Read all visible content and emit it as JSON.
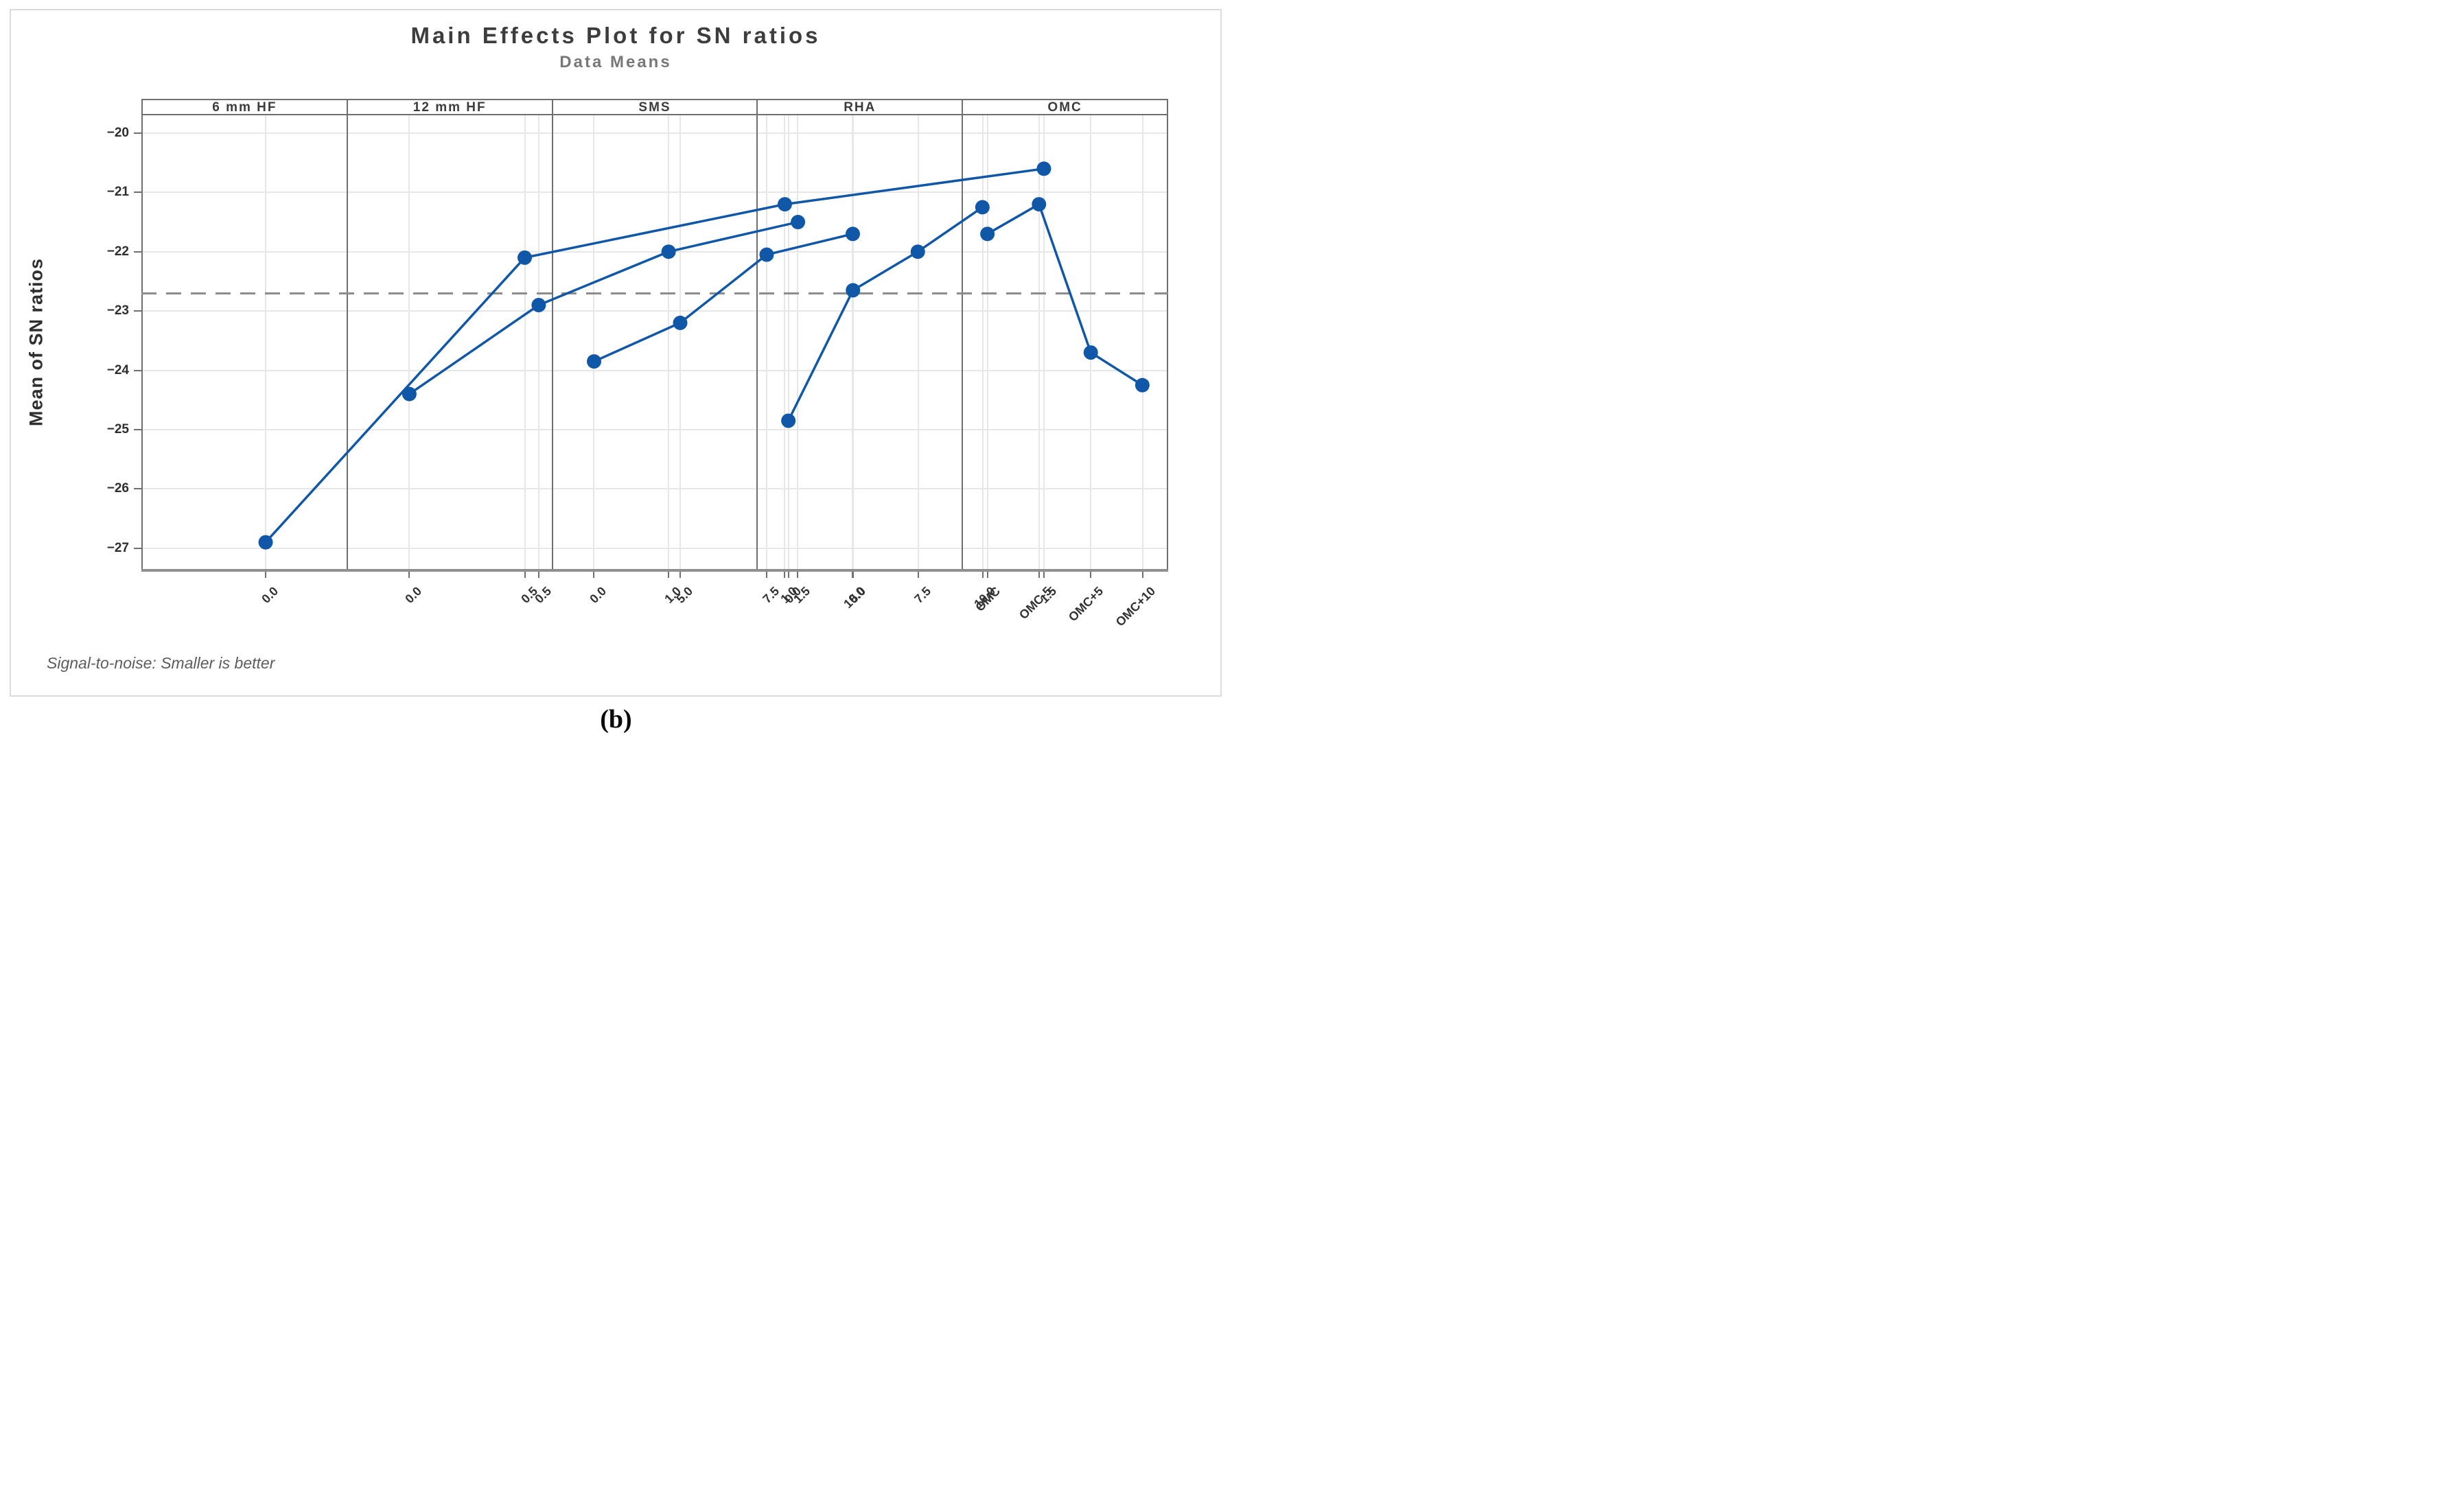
{
  "figure": {
    "title": "Main Effects Plot for SN ratios",
    "subtitle": "Data Means",
    "footer_note": "Signal-to-noise: Smaller is better",
    "caption": "(b)"
  },
  "colors": {
    "series_blue": "#1057a8",
    "gridline": "#e7e7e7",
    "panel_border": "#6f6f6f",
    "axis_line": "#8f8f8f",
    "reference_line": "#8c8c8c",
    "title_text": "#3d3d3d",
    "subtitle_text": "#787878",
    "footer_text": "#5c5c5c"
  },
  "chart_data": {
    "type": "line",
    "title": "Main Effects Plot for SN ratios",
    "subtitle": "Data Means",
    "ylabel": "Mean of SN ratios",
    "xlabel": "",
    "grid": true,
    "marker": "circle",
    "legend": "none",
    "ylim": [
      -27.35,
      -19.7
    ],
    "y_ticks": [
      -20,
      -21,
      -22,
      -23,
      -24,
      -25,
      -26,
      -27
    ],
    "y_tick_labels": [
      "−20",
      "−21",
      "−22",
      "−23",
      "−24",
      "−25",
      "−26",
      "−27"
    ],
    "reference_line_value": -22.7,
    "reference_line_style": "dashed",
    "panels": [
      {
        "label": "6 mm HF",
        "categories": [
          "0.0",
          "0.5",
          "1.0",
          "1.5"
        ],
        "values": [
          -26.9,
          -22.1,
          -21.2,
          -20.6
        ]
      },
      {
        "label": "12 mm HF",
        "categories": [
          "0.0",
          "0.5",
          "1.0",
          "1.5"
        ],
        "values": [
          -24.4,
          -22.9,
          -22.0,
          -21.5
        ]
      },
      {
        "label": "SMS",
        "categories": [
          "0.0",
          "5.0",
          "7.5",
          "10.0"
        ],
        "values": [
          -23.85,
          -23.2,
          -22.05,
          -21.7
        ]
      },
      {
        "label": "RHA",
        "categories": [
          "0.0",
          "5.0",
          "7.5",
          "10.0"
        ],
        "values": [
          -24.85,
          -22.65,
          -22.0,
          -21.25
        ]
      },
      {
        "label": "OMC",
        "categories": [
          "OMC",
          "OMC-5",
          "OMC+5",
          "OMC+10"
        ],
        "values": [
          -21.7,
          -21.2,
          -23.7,
          -24.25
        ]
      }
    ]
  }
}
